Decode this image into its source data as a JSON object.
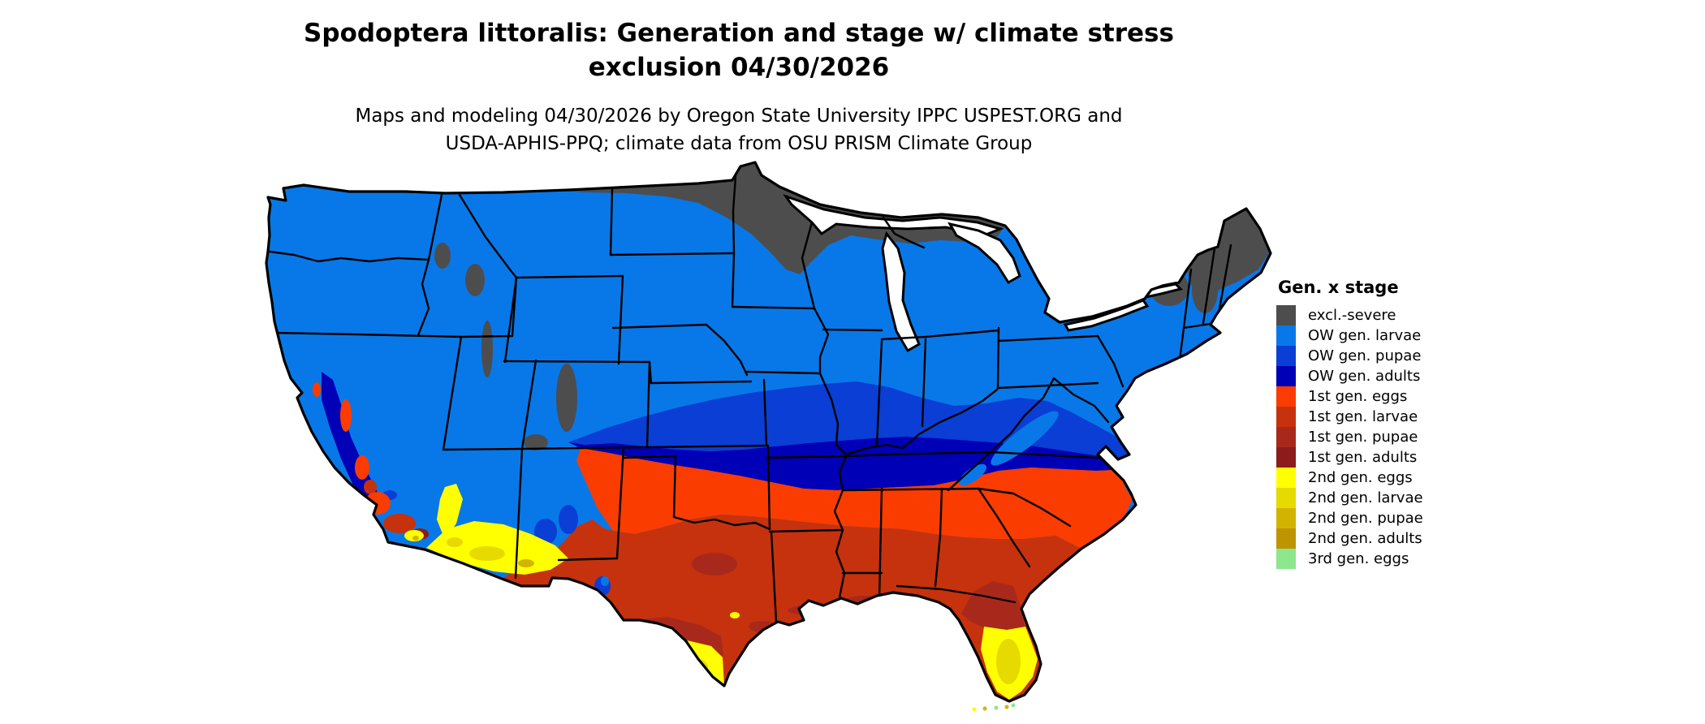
{
  "header": {
    "title_line1": "Spodoptera littoralis: Generation and stage w/ climate stress",
    "title_line2": "exclusion 04/30/2026",
    "subtitle_line1": "Maps and modeling 04/30/2026 by Oregon State University IPPC USPEST.ORG and",
    "subtitle_line2": "USDA-APHIS-PPQ; climate data from OSU PRISM Climate Group"
  },
  "legend": {
    "title": "Gen. x stage",
    "items": [
      {
        "label": "excl.-severe",
        "color": "#4D4D4D"
      },
      {
        "label": "OW gen. larvae",
        "color": "#0878E8"
      },
      {
        "label": "OW gen. pupae",
        "color": "#0A3ED4"
      },
      {
        "label": "OW gen. adults",
        "color": "#0000B6"
      },
      {
        "label": "1st gen. eggs",
        "color": "#FA3C00"
      },
      {
        "label": "1st gen. larvae",
        "color": "#C5320D"
      },
      {
        "label": "1st gen. pupae",
        "color": "#A8291B"
      },
      {
        "label": "1st gen. adults",
        "color": "#8C1B1B"
      },
      {
        "label": "2nd gen. eggs",
        "color": "#FFFF00"
      },
      {
        "label": "2nd gen. larvae",
        "color": "#E6DA00"
      },
      {
        "label": "2nd gen. pupae",
        "color": "#D2B400"
      },
      {
        "label": "2nd gen. adults",
        "color": "#BE9400"
      },
      {
        "label": "3rd gen. eggs",
        "color": "#8EE68E"
      }
    ]
  },
  "map": {
    "region": "Conterminous United States",
    "kind": "pest generation and life-stage raster map with state borders"
  }
}
